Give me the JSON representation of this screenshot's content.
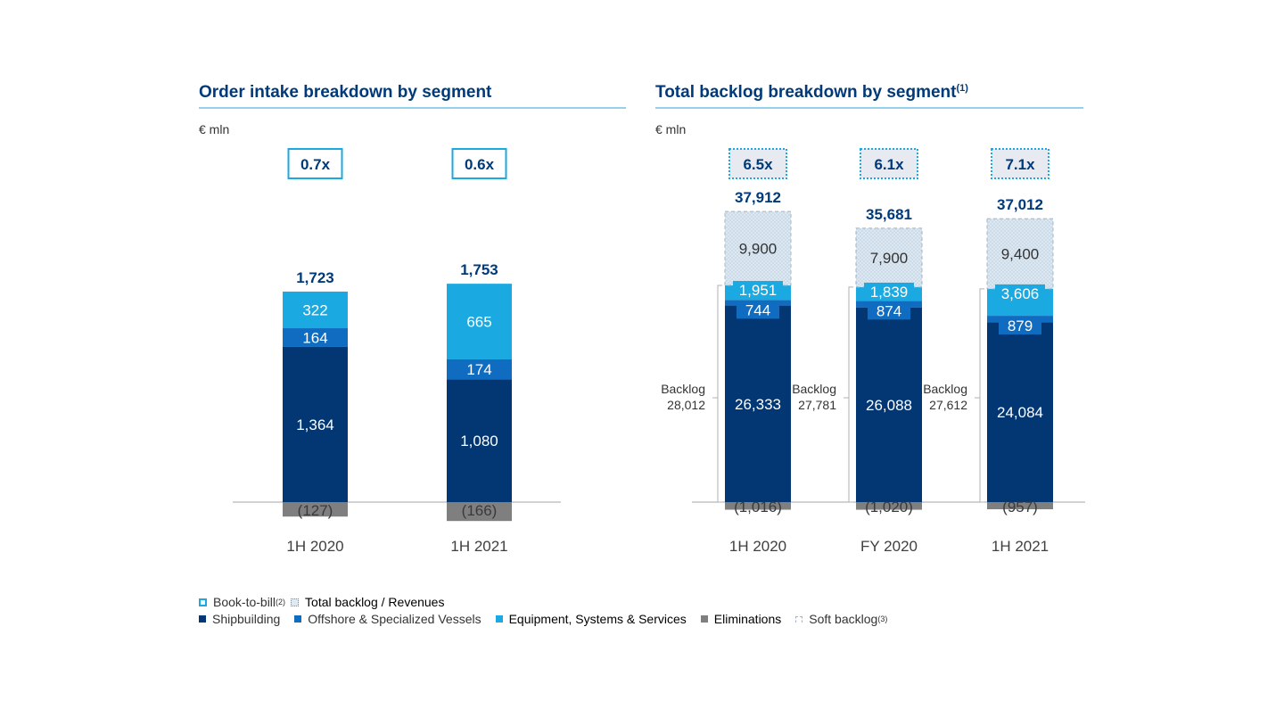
{
  "colors": {
    "shipbuilding": "#023773",
    "offshore": "#0f6cc0",
    "equipment": "#1aa9e1",
    "eliminations": "#7f7f7f",
    "soft_backlog": "#dbe6f0",
    "title": "#003a7a",
    "rule": "#29a3dc"
  },
  "unit": "€ mln",
  "chart_data": [
    {
      "type": "bar",
      "stacked": true,
      "title": "Order intake breakdown by segment",
      "unit": "€ mln",
      "categories": [
        "1H 2020",
        "1H 2021"
      ],
      "totals": [
        "1,723",
        "1,753"
      ],
      "book_to_bill": [
        "0.7x",
        "0.6x"
      ],
      "series": [
        {
          "name": "Shipbuilding",
          "values": [
            1364,
            1080
          ],
          "labels": [
            "1,364",
            "1,080"
          ]
        },
        {
          "name": "Offshore & Specialized Vessels",
          "values": [
            164,
            174
          ],
          "labels": [
            "164",
            "174"
          ]
        },
        {
          "name": "Equipment, Systems & Services",
          "values": [
            322,
            665
          ],
          "labels": [
            "322",
            "665"
          ]
        },
        {
          "name": "Eliminations",
          "values": [
            -127,
            -166
          ],
          "labels": [
            "(127)",
            "(166)"
          ]
        }
      ]
    },
    {
      "type": "bar",
      "stacked": true,
      "title": "Total backlog breakdown by segment",
      "title_note": "(1)",
      "unit": "€ mln",
      "categories": [
        "1H 2020",
        "FY 2020",
        "1H 2021"
      ],
      "totals": [
        "37,912",
        "35,681",
        "37,012"
      ],
      "backlog_to_revenues": [
        "6.5x",
        "6.1x",
        "7.1x"
      ],
      "backlog_label": "Backlog",
      "backlog_values": [
        "28,012",
        "27,781",
        "27,612"
      ],
      "series": [
        {
          "name": "Shipbuilding",
          "values": [
            26333,
            26088,
            24084
          ],
          "labels": [
            "26,333",
            "26,088",
            "24,084"
          ]
        },
        {
          "name": "Offshore & Specialized Vessels",
          "values": [
            744,
            874,
            879
          ],
          "labels": [
            "744",
            "874",
            "879"
          ]
        },
        {
          "name": "Equipment, Systems & Services",
          "values": [
            1951,
            1839,
            3606
          ],
          "labels": [
            "1,951",
            "1,839",
            "3,606"
          ]
        },
        {
          "name": "Soft backlog",
          "values": [
            9900,
            7900,
            9400
          ],
          "labels": [
            "9,900",
            "7,900",
            "9,400"
          ]
        },
        {
          "name": "Eliminations",
          "values": [
            -1016,
            -1020,
            -957
          ],
          "labels": [
            "(1,016)",
            "(1,020)",
            "(957)"
          ]
        }
      ]
    }
  ],
  "legend": {
    "book_to_bill": "Book-to-bill",
    "book_to_bill_note": "(2)",
    "total_backlog_revenues": "Total backlog / Revenues",
    "shipbuilding": "Shipbuilding",
    "offshore": "Offshore & Specialized Vessels",
    "equipment": "Equipment, Systems & Services",
    "eliminations": "Eliminations",
    "soft_backlog": "Soft backlog",
    "soft_backlog_note": "(3)"
  }
}
